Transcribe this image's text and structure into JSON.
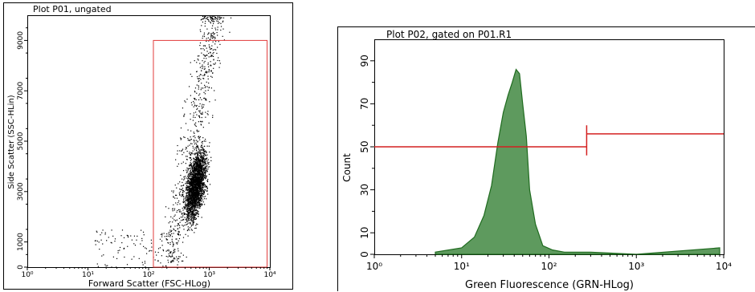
{
  "chart_data": [
    {
      "type": "scatter",
      "title": "Plot P01, ungated",
      "xlabel": "Forward Scatter (FSC-HLog)",
      "ylabel": "Side Scatter (SSC-HLin)",
      "x_scale": "log",
      "xlim": [
        1,
        10000
      ],
      "ylim": [
        0,
        10000
      ],
      "x_tick_labels": [
        "10⁰",
        "10¹",
        "10²",
        "10³",
        "10⁴"
      ],
      "x_ticks": [
        1,
        10,
        100,
        1000,
        10000
      ],
      "y_ticks": [
        0,
        1000,
        3000,
        5000,
        7000,
        9000
      ],
      "y_tick_labels": [
        "0",
        "1000",
        "3000",
        "5000",
        "7000",
        "9000"
      ],
      "grid": false,
      "gate": {
        "x": [
          120,
          9000
        ],
        "y": [
          0,
          9000
        ]
      },
      "population": {
        "center_x": 600,
        "center_y": 3300,
        "note": "dense cloud rising along a diagonal from ~(200, 500) to ~(1000, 10000)"
      },
      "colors": {
        "points": "#000000",
        "gate": "#e23b3b"
      }
    },
    {
      "type": "area",
      "title": "Plot P02, gated on P01.R1",
      "xlabel": "Green Fluorescence (GRN-HLog)",
      "ylabel": "Count",
      "x_scale": "log",
      "xlim": [
        1,
        10000
      ],
      "ylim": [
        0,
        100
      ],
      "x_ticks": [
        1,
        10,
        100,
        1000,
        10000
      ],
      "x_tick_labels": [
        "10⁰",
        "10¹",
        "10²",
        "10³",
        "10⁴"
      ],
      "y_ticks": [
        0,
        10,
        30,
        50,
        70,
        90
      ],
      "y_tick_labels": [
        "0",
        "10",
        "30",
        "50",
        "70",
        "90"
      ],
      "grid": false,
      "histogram": {
        "x": [
          5,
          10,
          14,
          18,
          22,
          26,
          30,
          34,
          38,
          42,
          46,
          50,
          55,
          60,
          70,
          85,
          110,
          150,
          300,
          1000,
          9000
        ],
        "y": [
          1,
          3,
          8,
          18,
          32,
          52,
          66,
          74,
          80,
          86,
          84,
          70,
          55,
          30,
          14,
          4,
          2,
          1,
          1,
          0,
          3
        ]
      },
      "markers": [
        {
          "x_range": [
            1,
            270
          ],
          "y": 50
        },
        {
          "x_range": [
            270,
            10000
          ],
          "y": 56
        }
      ],
      "colors": {
        "fill": "#5e9a5e",
        "stroke": "#1f6b1f",
        "marker": "#d42020"
      }
    }
  ]
}
